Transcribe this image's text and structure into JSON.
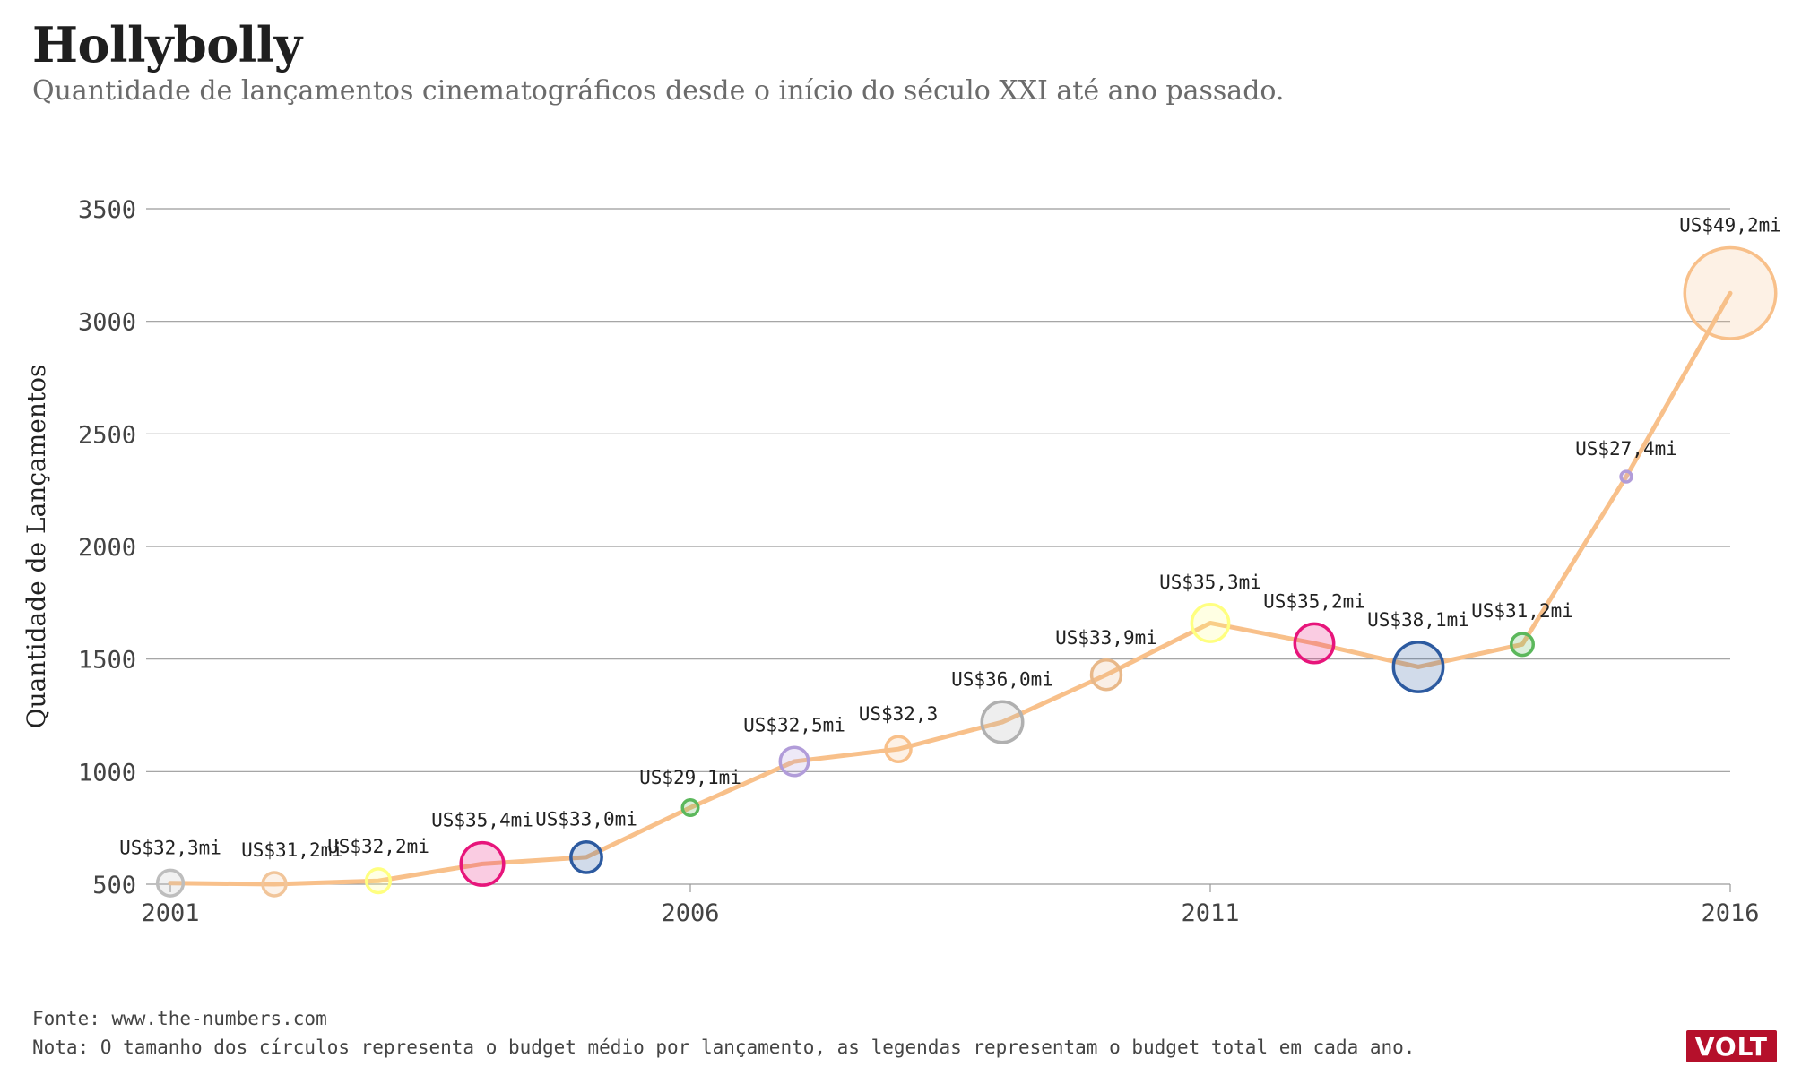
{
  "title": "Hollybolly",
  "subtitle": "Quantidade de lançamentos cinematográficos desde o início do século XXI até ano passado.",
  "footer": {
    "source": "Fonte: www.the-numbers.com",
    "note": "Nota: O tamanho dos círculos representa o budget médio por lançamento, as legendas representam o budget total em cada ano."
  },
  "logo": "VOLT",
  "colors": {
    "line": "#f8c08a",
    "grid": "#9a9a9a",
    "axis_text": "#444444"
  },
  "chart_data": {
    "type": "line",
    "title": "",
    "xlabel": "",
    "ylabel": "Quantidade de Lançamentos",
    "xlim": [
      2001,
      2016
    ],
    "ylim": [
      500,
      3500
    ],
    "yticks": [
      500,
      1000,
      1500,
      2000,
      2500,
      3000,
      3500
    ],
    "xticks": [
      2001,
      2006,
      2011,
      2016
    ],
    "grid": true,
    "series": [
      {
        "x": [
          2001,
          2002,
          2003,
          2004,
          2005,
          2006,
          2007,
          2008,
          2009,
          2010,
          2011,
          2012,
          2013,
          2014,
          2015,
          2016
        ],
        "values": [
          505,
          500,
          515,
          590,
          620,
          840,
          1045,
          1100,
          1220,
          1430,
          1660,
          1570,
          1465,
          1565,
          2310,
          3125
        ]
      }
    ],
    "bubble_budget_avg": [
      4.1,
      3.7,
      3.8,
      6.8,
      4.9,
      2.5,
      4.5,
      4.0,
      6.5,
      4.7,
      5.9,
      6.2,
      7.9,
      3.5,
      1.7,
      14.5
    ],
    "bubble_colors": [
      "#bdbdbd",
      "#f1c59a",
      "#ffff80",
      "#e7157b",
      "#2c5aa0",
      "#5cb85c",
      "#b19cd9",
      "#f8c08a",
      "#b0b0b0",
      "#e8b889",
      "#ffff80",
      "#e7157b",
      "#2c5aa0",
      "#5cb85c",
      "#b19cd9",
      "#f8c08a"
    ],
    "labels": [
      "US$32,3mi",
      "US$31,2mi",
      "US$32,2mi",
      "US$35,4mi",
      "US$33,0mi",
      "US$29,1mi",
      "US$32,5mi",
      "US$32,3",
      "US$36,0mi",
      "US$33,9mi",
      "US$35,3mi",
      "US$35,2mi",
      "US$38,1mi",
      "US$31,2mi",
      "US$27,4mi",
      "US$49,2mi"
    ]
  }
}
